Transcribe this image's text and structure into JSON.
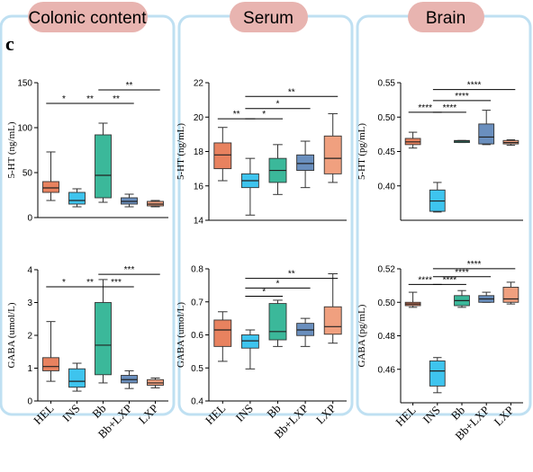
{
  "figure": {
    "panel_letter": "c",
    "colors": {
      "panel_border": "#bfe0f2",
      "title_bg": "#e8b4b0",
      "HEL": "#e8825f",
      "INS": "#3ec4ee",
      "Bb": "#3bb89a",
      "Bb+LXP": "#6a8fbe",
      "LXP": "#f0a07f"
    }
  },
  "chart_data": [
    {
      "type": "box",
      "panel": "Colonic content",
      "title": "Colonic content",
      "ylabel": "5-HT (ng/mL)",
      "ylim": [
        0,
        150
      ],
      "yticks": [
        "0",
        "50",
        "100",
        "150"
      ],
      "categories": [
        "HEL",
        "INS",
        "Bb",
        "Bb+LXP",
        "LXP"
      ],
      "boxes": [
        {
          "group": "HEL",
          "min": 19,
          "q1": 28,
          "median": 33,
          "q3": 40,
          "max": 73
        },
        {
          "group": "INS",
          "min": 12,
          "q1": 15,
          "median": 19,
          "q3": 28,
          "max": 32
        },
        {
          "group": "Bb",
          "min": 17,
          "q1": 22,
          "median": 47,
          "q3": 92,
          "max": 105
        },
        {
          "group": "Bb+LXP",
          "min": 12,
          "q1": 15,
          "median": 18,
          "q3": 22,
          "max": 26
        },
        {
          "group": "LXP",
          "min": 12,
          "q1": 13,
          "median": 15,
          "q3": 18,
          "max": 19
        }
      ],
      "significance": [
        {
          "from": 0,
          "to": 1,
          "label": "*",
          "y": 127
        },
        {
          "from": 1,
          "to": 2,
          "label": "**",
          "y": 127
        },
        {
          "from": 2,
          "to": 3,
          "label": "**",
          "y": 127
        },
        {
          "from": 2,
          "to": 4,
          "label": "**",
          "y": 142
        }
      ]
    },
    {
      "type": "box",
      "panel": "Colonic content",
      "ylabel": "GABA (umol/L)",
      "ylim": [
        0,
        4
      ],
      "yticks": [
        "0",
        "1",
        "2",
        "3",
        "4"
      ],
      "categories": [
        "HEL",
        "INS",
        "Bb",
        "Bb+LXP",
        "LXP"
      ],
      "boxes": [
        {
          "group": "HEL",
          "min": 0.6,
          "q1": 0.92,
          "median": 1.05,
          "q3": 1.32,
          "max": 2.42
        },
        {
          "group": "INS",
          "min": 0.3,
          "q1": 0.42,
          "median": 0.6,
          "q3": 0.98,
          "max": 1.15
        },
        {
          "group": "Bb",
          "min": 0.55,
          "q1": 0.8,
          "median": 1.7,
          "q3": 3.0,
          "max": 3.7
        },
        {
          "group": "Bb+LXP",
          "min": 0.38,
          "q1": 0.55,
          "median": 0.65,
          "q3": 0.78,
          "max": 0.92
        },
        {
          "group": "LXP",
          "min": 0.4,
          "q1": 0.48,
          "median": 0.55,
          "q3": 0.65,
          "max": 0.7
        }
      ],
      "significance": [
        {
          "from": 0,
          "to": 1,
          "label": "*",
          "y": 3.48
        },
        {
          "from": 1,
          "to": 2,
          "label": "**",
          "y": 3.48
        },
        {
          "from": 2,
          "to": 3,
          "label": "***",
          "y": 3.48
        },
        {
          "from": 2,
          "to": 4,
          "label": "***",
          "y": 3.86
        }
      ]
    },
    {
      "type": "box",
      "panel": "Serum",
      "title": "Serum",
      "ylabel": "5-HT (ng/mL)",
      "ylim": [
        14,
        22
      ],
      "yticks": [
        "14",
        "16",
        "18",
        "20",
        "22"
      ],
      "categories": [
        "HEL",
        "INS",
        "Bb",
        "Bb+LXP",
        "LXP"
      ],
      "boxes": [
        {
          "group": "HEL",
          "min": 16.3,
          "q1": 17.0,
          "median": 17.8,
          "q3": 18.5,
          "max": 19.4
        },
        {
          "group": "INS",
          "min": 14.3,
          "q1": 15.9,
          "median": 16.3,
          "q3": 16.7,
          "max": 17.6
        },
        {
          "group": "Bb",
          "min": 15.5,
          "q1": 16.2,
          "median": 16.9,
          "q3": 17.6,
          "max": 18.4
        },
        {
          "group": "Bb+LXP",
          "min": 15.9,
          "q1": 16.9,
          "median": 17.3,
          "q3": 17.8,
          "max": 18.6
        },
        {
          "group": "LXP",
          "min": 16.2,
          "q1": 16.7,
          "median": 17.6,
          "q3": 18.9,
          "max": 20.2
        }
      ],
      "significance": [
        {
          "from": 0,
          "to": 1,
          "label": "**",
          "y": 19.9
        },
        {
          "from": 1,
          "to": 2,
          "label": "*",
          "y": 19.9
        },
        {
          "from": 1,
          "to": 3,
          "label": "*",
          "y": 20.5
        },
        {
          "from": 1,
          "to": 4,
          "label": "**",
          "y": 21.2
        }
      ]
    },
    {
      "type": "box",
      "panel": "Serum",
      "ylabel": "GABA (umol/L)",
      "ylim": [
        0.4,
        0.8
      ],
      "yticks": [
        "0.4",
        "0.5",
        "0.6",
        "0.7",
        "0.8"
      ],
      "categories": [
        "HEL",
        "INS",
        "Bb",
        "Bb+LXP",
        "LXP"
      ],
      "boxes": [
        {
          "group": "HEL",
          "min": 0.52,
          "q1": 0.565,
          "median": 0.615,
          "q3": 0.645,
          "max": 0.67
        },
        {
          "group": "INS",
          "min": 0.497,
          "q1": 0.56,
          "median": 0.582,
          "q3": 0.6,
          "max": 0.615
        },
        {
          "group": "Bb",
          "min": 0.565,
          "q1": 0.585,
          "median": 0.61,
          "q3": 0.695,
          "max": 0.705
        },
        {
          "group": "Bb+LXP",
          "min": 0.565,
          "q1": 0.598,
          "median": 0.615,
          "q3": 0.635,
          "max": 0.65
        },
        {
          "group": "LXP",
          "min": 0.575,
          "q1": 0.602,
          "median": 0.625,
          "q3": 0.685,
          "max": 0.785
        }
      ],
      "significance": [
        {
          "from": 1,
          "to": 2,
          "label": "*",
          "y": 0.717
        },
        {
          "from": 1,
          "to": 3,
          "label": "*",
          "y": 0.742
        },
        {
          "from": 1,
          "to": 4,
          "label": "**",
          "y": 0.771
        }
      ]
    },
    {
      "type": "box",
      "panel": "Brain",
      "title": "Brain",
      "ylabel": "5-HT (pg/mL)",
      "ylim": [
        0.35,
        0.55
      ],
      "yticks": [
        "0.40",
        "0.45",
        "0.50",
        "0.55"
      ],
      "categories": [
        "HEL",
        "INS",
        "Bb",
        "Bb+LXP",
        "LXP"
      ],
      "boxes": [
        {
          "group": "HEL",
          "min": 0.455,
          "q1": 0.46,
          "median": 0.464,
          "q3": 0.469,
          "max": 0.478
        },
        {
          "group": "INS",
          "min": 0.362,
          "q1": 0.363,
          "median": 0.378,
          "q3": 0.394,
          "max": 0.405
        },
        {
          "group": "Bb",
          "min": 0.463,
          "q1": 0.463,
          "median": 0.465,
          "q3": 0.466,
          "max": 0.466
        },
        {
          "group": "Bb+LXP",
          "min": 0.46,
          "q1": 0.461,
          "median": 0.471,
          "q3": 0.49,
          "max": 0.51
        },
        {
          "group": "LXP",
          "min": 0.459,
          "q1": 0.461,
          "median": 0.463,
          "q3": 0.466,
          "max": 0.467
        }
      ],
      "significance": [
        {
          "from": 0,
          "to": 1,
          "label": "****",
          "y": 0.507
        },
        {
          "from": 1,
          "to": 2,
          "label": "****",
          "y": 0.507
        },
        {
          "from": 1,
          "to": 3,
          "label": "****",
          "y": 0.524
        },
        {
          "from": 1,
          "to": 4,
          "label": "****",
          "y": 0.54
        }
      ]
    },
    {
      "type": "box",
      "panel": "Brain",
      "ylabel": "GABA (pg/mL)",
      "ylim": [
        0.44,
        0.52
      ],
      "yticks": [
        "0.46",
        "0.48",
        "0.50",
        "0.52"
      ],
      "categories": [
        "HEL",
        "INS",
        "Bb",
        "Bb+LXP",
        "LXP"
      ],
      "boxes": [
        {
          "group": "HEL",
          "min": 0.497,
          "q1": 0.498,
          "median": 0.499,
          "q3": 0.5,
          "max": 0.506
        },
        {
          "group": "INS",
          "min": 0.446,
          "q1": 0.45,
          "median": 0.459,
          "q3": 0.465,
          "max": 0.467
        },
        {
          "group": "Bb",
          "min": 0.497,
          "q1": 0.498,
          "median": 0.501,
          "q3": 0.504,
          "max": 0.507
        },
        {
          "group": "Bb+LXP",
          "min": 0.5,
          "q1": 0.5,
          "median": 0.502,
          "q3": 0.504,
          "max": 0.506
        },
        {
          "group": "LXP",
          "min": 0.499,
          "q1": 0.5,
          "median": 0.502,
          "q3": 0.509,
          "max": 0.512
        }
      ],
      "significance": [
        {
          "from": 0,
          "to": 1,
          "label": "****",
          "y": 0.5107
        },
        {
          "from": 1,
          "to": 2,
          "label": "****",
          "y": 0.5107
        },
        {
          "from": 1,
          "to": 3,
          "label": "****",
          "y": 0.5153
        },
        {
          "from": 1,
          "to": 4,
          "label": "****",
          "y": 0.5201
        }
      ]
    }
  ]
}
